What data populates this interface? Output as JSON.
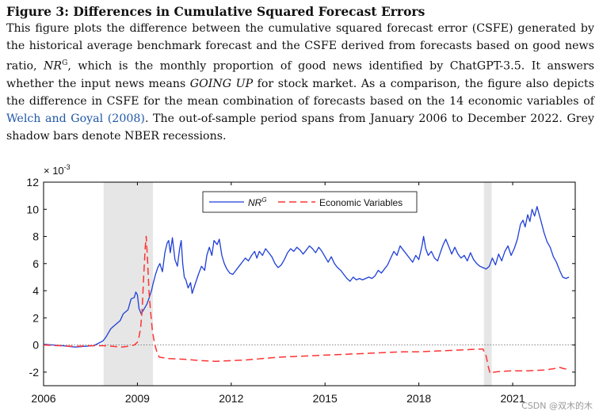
{
  "caption": {
    "figure_label": "Figure 3:",
    "title": "Differences in Cumulative Squared Forecast Errors",
    "text_p1": "This figure plots the difference between the cumulative squared forecast error (CSFE) generated by the historical average benchmark forecast and the CSFE derived from forecasts based on good news ratio, ",
    "nr_symbol": "NR",
    "nr_sup": "G",
    "text_p2": ", which is the monthly proportion of good news identified by ChatGPT-3.5.  It answers whether the input news means ",
    "italic_phrase": "GOING UP",
    "text_p3": " for stock market.  As a comparison, the figure also depicts the difference in CSFE for the mean combination of forecasts based on the 14 economic variables of ",
    "citation_name": "Welch and Goyal",
    "citation_year_open": " (",
    "citation_year": "2008",
    "citation_year_close": ")",
    "text_p4": ".  The out-of-sample period spans from January 2006 to December 2022.  Grey shadow bars denote NBER recessions."
  },
  "chart_data": {
    "type": "line",
    "title": "",
    "xlabel": "",
    "ylabel": "",
    "scale_label": "× 10",
    "scale_exponent": "-3",
    "xlim": [
      2006.0,
      2023.0
    ],
    "ylim": [
      -3,
      12
    ],
    "x_ticks": [
      2006,
      2009,
      2012,
      2015,
      2018,
      2021
    ],
    "y_ticks": [
      -2,
      0,
      2,
      4,
      6,
      8,
      10,
      12
    ],
    "zero_reference_line": true,
    "recession_bands": [
      {
        "start": 2007.92,
        "end": 2009.5
      },
      {
        "start": 2020.08,
        "end": 2020.33
      }
    ],
    "legend": {
      "placement": "top-center",
      "entries": [
        "NR^G",
        "Economic Variables"
      ]
    },
    "series": [
      {
        "name": "NR^G",
        "legend_symbol": "NR",
        "legend_sup": "G",
        "color": "#1f3fd8",
        "style": "solid",
        "points": [
          [
            2006.0,
            0.05
          ],
          [
            2006.3,
            0.0
          ],
          [
            2006.6,
            -0.05
          ],
          [
            2007.0,
            -0.15
          ],
          [
            2007.3,
            -0.1
          ],
          [
            2007.6,
            -0.05
          ],
          [
            2007.9,
            0.3
          ],
          [
            2008.0,
            0.6
          ],
          [
            2008.15,
            1.2
          ],
          [
            2008.3,
            1.5
          ],
          [
            2008.45,
            1.8
          ],
          [
            2008.55,
            2.3
          ],
          [
            2008.7,
            2.6
          ],
          [
            2008.8,
            3.4
          ],
          [
            2008.9,
            3.5
          ],
          [
            2008.95,
            3.9
          ],
          [
            2009.0,
            3.7
          ],
          [
            2009.05,
            2.7
          ],
          [
            2009.12,
            2.3
          ],
          [
            2009.2,
            2.6
          ],
          [
            2009.3,
            3.0
          ],
          [
            2009.38,
            3.5
          ],
          [
            2009.45,
            4.0
          ],
          [
            2009.5,
            4.5
          ],
          [
            2009.58,
            5.2
          ],
          [
            2009.65,
            5.7
          ],
          [
            2009.72,
            6.0
          ],
          [
            2009.8,
            5.4
          ],
          [
            2009.88,
            6.8
          ],
          [
            2009.95,
            7.5
          ],
          [
            2010.0,
            7.7
          ],
          [
            2010.05,
            6.8
          ],
          [
            2010.12,
            7.9
          ],
          [
            2010.2,
            6.3
          ],
          [
            2010.28,
            5.8
          ],
          [
            2010.35,
            7.1
          ],
          [
            2010.4,
            7.7
          ],
          [
            2010.45,
            6.0
          ],
          [
            2010.5,
            5.0
          ],
          [
            2010.55,
            4.8
          ],
          [
            2010.62,
            4.2
          ],
          [
            2010.7,
            4.6
          ],
          [
            2010.75,
            3.8
          ],
          [
            2010.85,
            4.5
          ],
          [
            2010.95,
            5.2
          ],
          [
            2011.05,
            5.8
          ],
          [
            2011.15,
            5.5
          ],
          [
            2011.22,
            6.6
          ],
          [
            2011.3,
            7.2
          ],
          [
            2011.38,
            6.6
          ],
          [
            2011.45,
            7.7
          ],
          [
            2011.55,
            7.4
          ],
          [
            2011.62,
            7.8
          ],
          [
            2011.7,
            6.6
          ],
          [
            2011.78,
            6.0
          ],
          [
            2011.86,
            5.6
          ],
          [
            2011.95,
            5.3
          ],
          [
            2012.05,
            5.2
          ],
          [
            2012.15,
            5.5
          ],
          [
            2012.25,
            5.8
          ],
          [
            2012.35,
            6.1
          ],
          [
            2012.45,
            6.4
          ],
          [
            2012.55,
            6.2
          ],
          [
            2012.65,
            6.6
          ],
          [
            2012.75,
            6.9
          ],
          [
            2012.82,
            6.4
          ],
          [
            2012.9,
            6.9
          ],
          [
            2013.0,
            6.6
          ],
          [
            2013.1,
            7.1
          ],
          [
            2013.2,
            6.8
          ],
          [
            2013.3,
            6.5
          ],
          [
            2013.4,
            6.0
          ],
          [
            2013.5,
            5.7
          ],
          [
            2013.6,
            5.9
          ],
          [
            2013.7,
            6.3
          ],
          [
            2013.8,
            6.8
          ],
          [
            2013.9,
            7.1
          ],
          [
            2014.0,
            6.9
          ],
          [
            2014.1,
            7.2
          ],
          [
            2014.2,
            7.0
          ],
          [
            2014.3,
            6.7
          ],
          [
            2014.4,
            7.0
          ],
          [
            2014.5,
            7.3
          ],
          [
            2014.6,
            7.1
          ],
          [
            2014.7,
            6.8
          ],
          [
            2014.8,
            7.2
          ],
          [
            2014.9,
            6.9
          ],
          [
            2015.0,
            6.5
          ],
          [
            2015.1,
            6.1
          ],
          [
            2015.2,
            6.5
          ],
          [
            2015.3,
            6.0
          ],
          [
            2015.4,
            5.7
          ],
          [
            2015.5,
            5.5
          ],
          [
            2015.6,
            5.2
          ],
          [
            2015.7,
            4.9
          ],
          [
            2015.8,
            4.7
          ],
          [
            2015.9,
            5.0
          ],
          [
            2016.0,
            4.8
          ],
          [
            2016.1,
            4.9
          ],
          [
            2016.2,
            4.8
          ],
          [
            2016.3,
            4.9
          ],
          [
            2016.4,
            5.0
          ],
          [
            2016.5,
            4.9
          ],
          [
            2016.6,
            5.1
          ],
          [
            2016.7,
            5.5
          ],
          [
            2016.8,
            5.3
          ],
          [
            2016.9,
            5.6
          ],
          [
            2017.0,
            5.9
          ],
          [
            2017.1,
            6.4
          ],
          [
            2017.2,
            6.9
          ],
          [
            2017.3,
            6.6
          ],
          [
            2017.4,
            7.3
          ],
          [
            2017.5,
            7.0
          ],
          [
            2017.6,
            6.7
          ],
          [
            2017.7,
            6.4
          ],
          [
            2017.8,
            6.1
          ],
          [
            2017.9,
            6.6
          ],
          [
            2018.0,
            6.3
          ],
          [
            2018.1,
            7.3
          ],
          [
            2018.15,
            8.0
          ],
          [
            2018.22,
            7.1
          ],
          [
            2018.3,
            6.6
          ],
          [
            2018.4,
            6.9
          ],
          [
            2018.5,
            6.4
          ],
          [
            2018.6,
            6.2
          ],
          [
            2018.7,
            6.9
          ],
          [
            2018.78,
            7.4
          ],
          [
            2018.86,
            7.8
          ],
          [
            2018.95,
            7.3
          ],
          [
            2019.05,
            6.7
          ],
          [
            2019.15,
            7.2
          ],
          [
            2019.25,
            6.7
          ],
          [
            2019.35,
            6.4
          ],
          [
            2019.45,
            6.6
          ],
          [
            2019.55,
            6.2
          ],
          [
            2019.65,
            6.8
          ],
          [
            2019.75,
            6.3
          ],
          [
            2019.85,
            6.0
          ],
          [
            2019.95,
            5.8
          ],
          [
            2020.05,
            5.7
          ],
          [
            2020.15,
            5.6
          ],
          [
            2020.25,
            5.8
          ],
          [
            2020.35,
            6.4
          ],
          [
            2020.45,
            5.9
          ],
          [
            2020.55,
            6.7
          ],
          [
            2020.65,
            6.2
          ],
          [
            2020.75,
            6.9
          ],
          [
            2020.85,
            7.3
          ],
          [
            2020.95,
            6.6
          ],
          [
            2021.05,
            7.1
          ],
          [
            2021.15,
            7.8
          ],
          [
            2021.25,
            8.9
          ],
          [
            2021.33,
            9.2
          ],
          [
            2021.4,
            8.7
          ],
          [
            2021.48,
            9.6
          ],
          [
            2021.55,
            9.1
          ],
          [
            2021.62,
            10.0
          ],
          [
            2021.7,
            9.5
          ],
          [
            2021.78,
            10.2
          ],
          [
            2021.85,
            9.6
          ],
          [
            2021.92,
            9.0
          ],
          [
            2022.0,
            8.3
          ],
          [
            2022.1,
            7.6
          ],
          [
            2022.2,
            7.2
          ],
          [
            2022.3,
            6.5
          ],
          [
            2022.4,
            6.1
          ],
          [
            2022.5,
            5.5
          ],
          [
            2022.6,
            5.0
          ],
          [
            2022.7,
            4.9
          ],
          [
            2022.8,
            5.0
          ]
        ]
      },
      {
        "name": "Economic Variables",
        "legend_symbol": "Economic Variables",
        "legend_sup": "",
        "color": "#ff3333",
        "style": "dashed",
        "points": [
          [
            2006.0,
            0.0
          ],
          [
            2006.5,
            -0.05
          ],
          [
            2007.0,
            -0.1
          ],
          [
            2007.5,
            -0.05
          ],
          [
            2007.9,
            -0.05
          ],
          [
            2008.2,
            -0.1
          ],
          [
            2008.5,
            -0.15
          ],
          [
            2008.7,
            -0.1
          ],
          [
            2008.9,
            0.0
          ],
          [
            2009.0,
            0.2
          ],
          [
            2009.05,
            0.6
          ],
          [
            2009.1,
            1.2
          ],
          [
            2009.15,
            2.5
          ],
          [
            2009.2,
            5.0
          ],
          [
            2009.25,
            7.2
          ],
          [
            2009.28,
            8.0
          ],
          [
            2009.32,
            6.5
          ],
          [
            2009.37,
            4.0
          ],
          [
            2009.42,
            2.5
          ],
          [
            2009.48,
            1.0
          ],
          [
            2009.55,
            0.1
          ],
          [
            2009.62,
            -0.5
          ],
          [
            2009.7,
            -0.9
          ],
          [
            2010.0,
            -1.0
          ],
          [
            2010.5,
            -1.05
          ],
          [
            2011.0,
            -1.15
          ],
          [
            2011.5,
            -1.2
          ],
          [
            2012.0,
            -1.15
          ],
          [
            2012.5,
            -1.1
          ],
          [
            2013.0,
            -1.0
          ],
          [
            2013.5,
            -0.9
          ],
          [
            2014.0,
            -0.85
          ],
          [
            2014.5,
            -0.8
          ],
          [
            2015.0,
            -0.75
          ],
          [
            2015.5,
            -0.7
          ],
          [
            2016.0,
            -0.65
          ],
          [
            2016.5,
            -0.6
          ],
          [
            2017.0,
            -0.55
          ],
          [
            2017.5,
            -0.5
          ],
          [
            2018.0,
            -0.5
          ],
          [
            2018.5,
            -0.45
          ],
          [
            2019.0,
            -0.4
          ],
          [
            2019.5,
            -0.35
          ],
          [
            2019.9,
            -0.3
          ],
          [
            2020.05,
            -0.3
          ],
          [
            2020.15,
            -0.8
          ],
          [
            2020.22,
            -1.6
          ],
          [
            2020.28,
            -2.1
          ],
          [
            2020.4,
            -2.0
          ],
          [
            2020.6,
            -1.95
          ],
          [
            2021.0,
            -1.9
          ],
          [
            2021.5,
            -1.9
          ],
          [
            2022.0,
            -1.85
          ],
          [
            2022.3,
            -1.75
          ],
          [
            2022.5,
            -1.65
          ],
          [
            2022.65,
            -1.75
          ],
          [
            2022.8,
            -1.8
          ]
        ]
      }
    ]
  },
  "watermark": "CSDN @双木的木"
}
